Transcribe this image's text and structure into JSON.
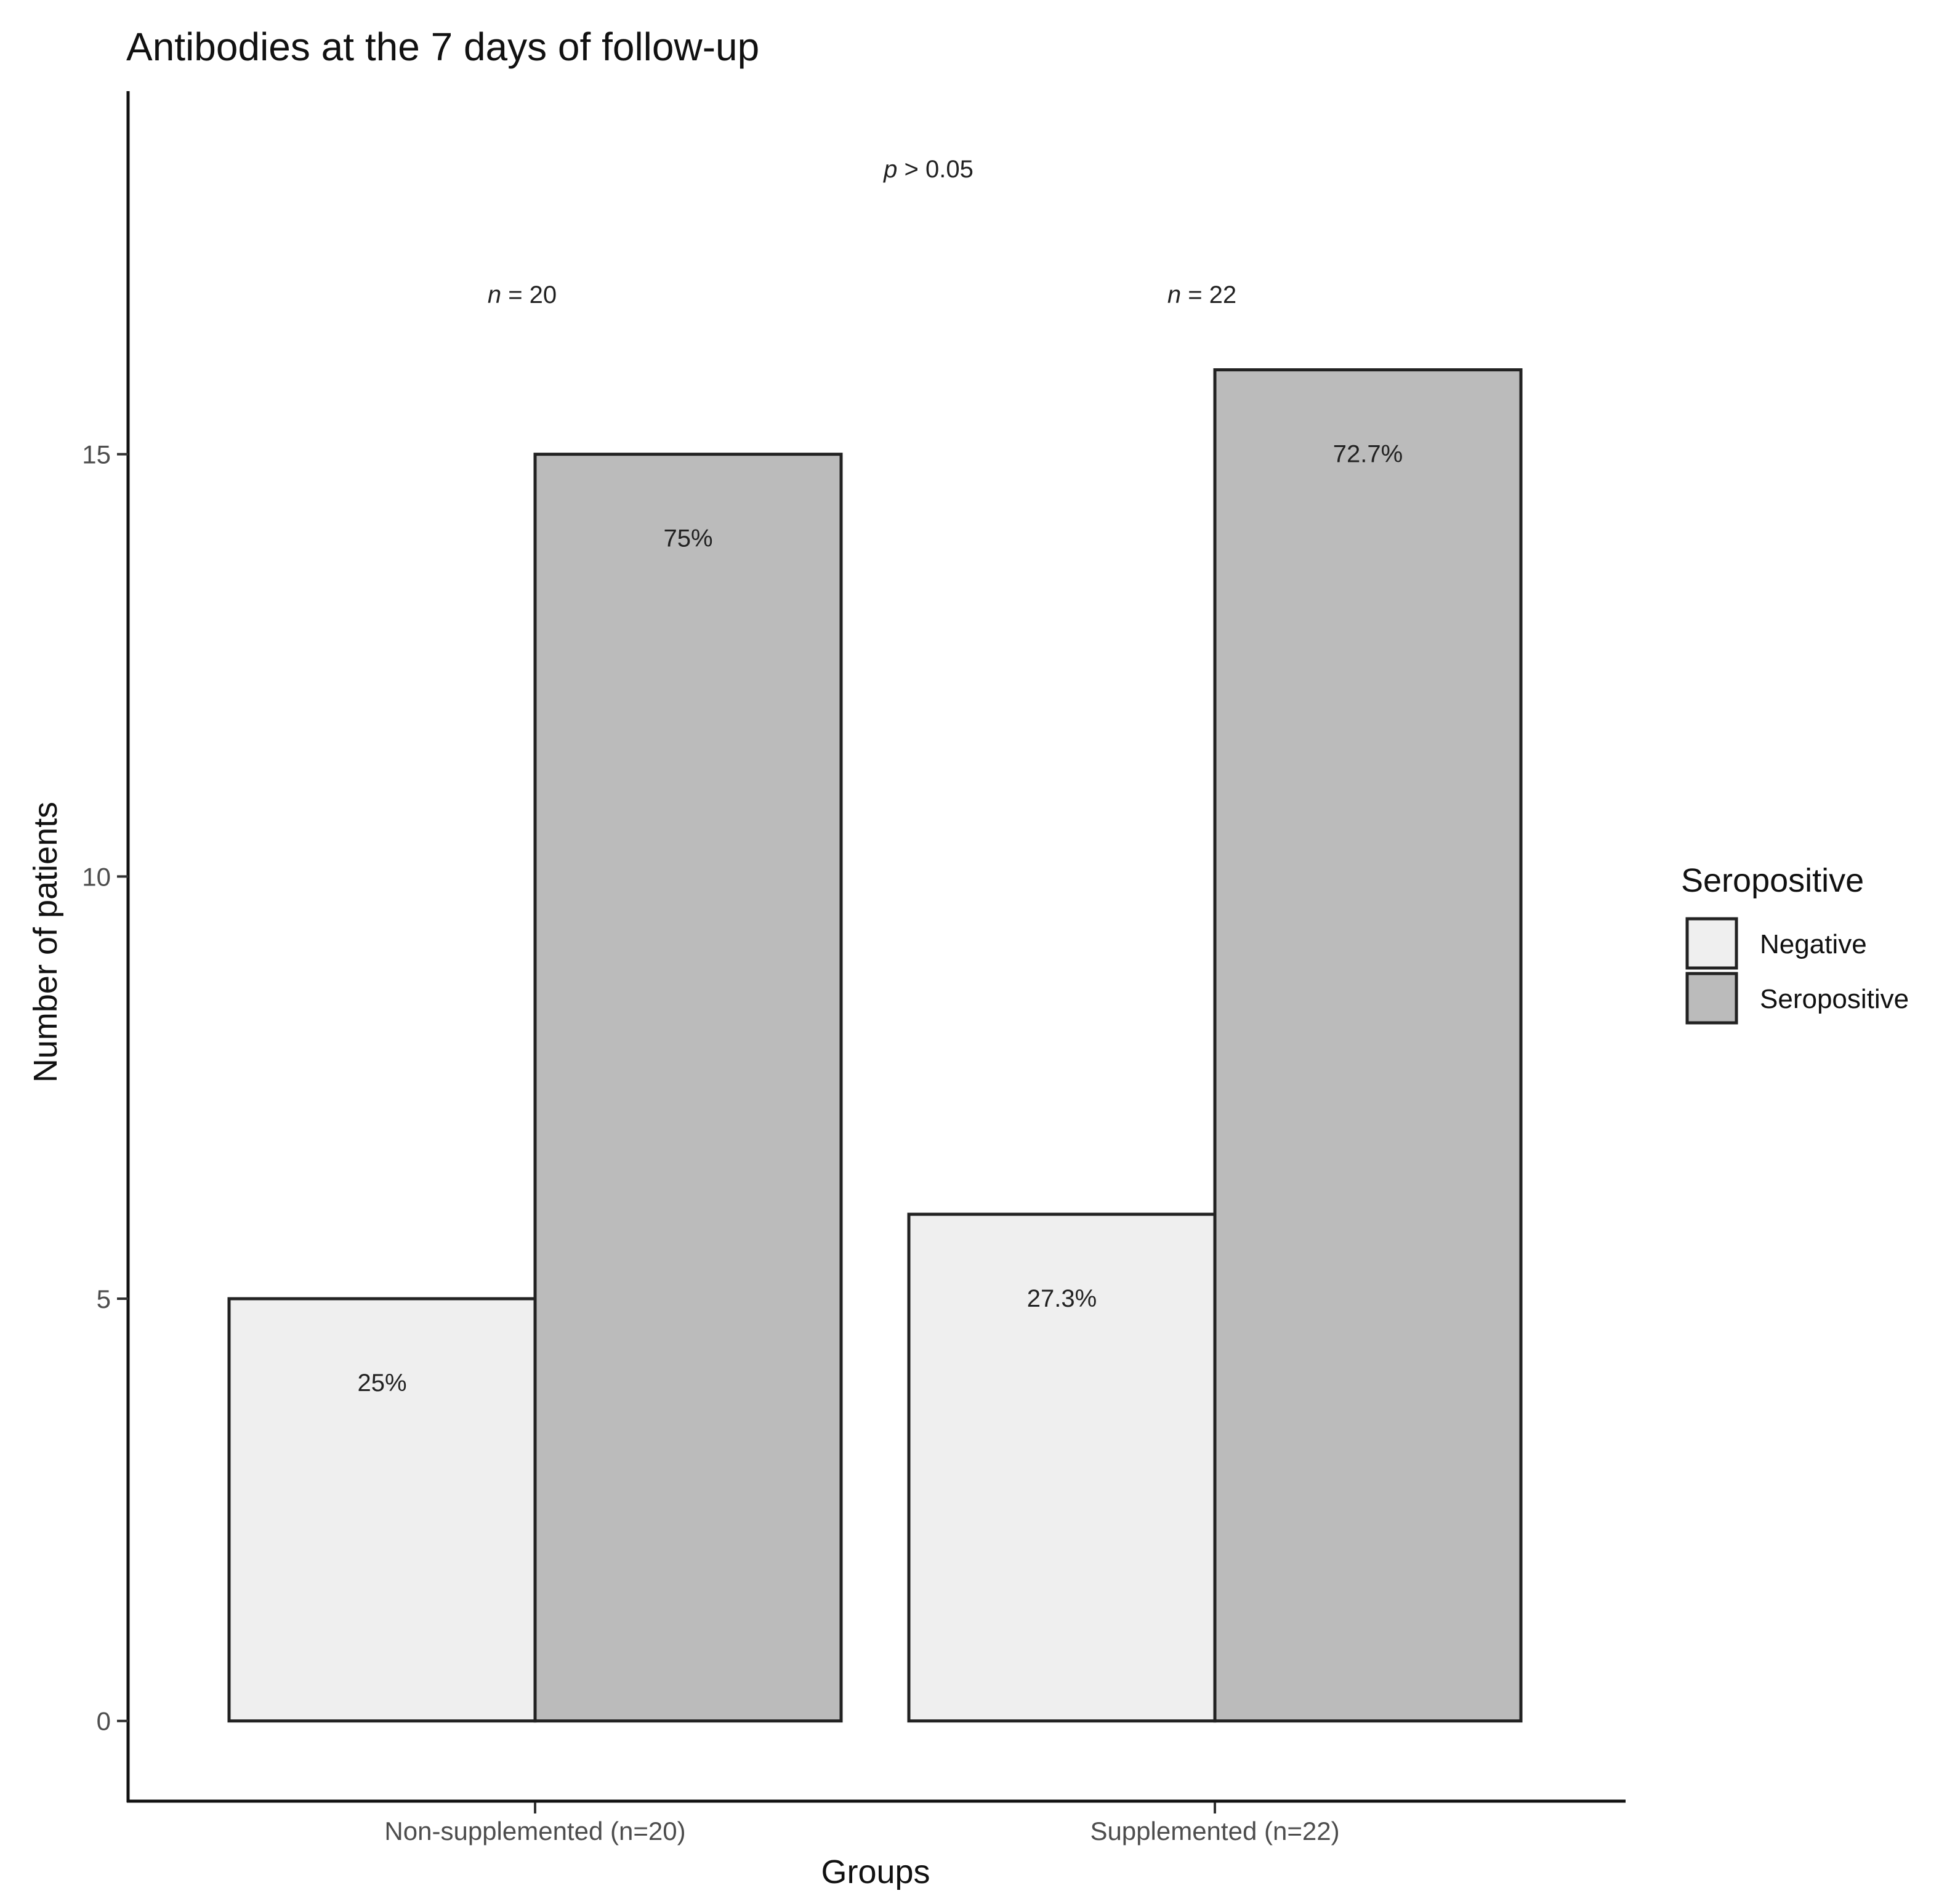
{
  "chart_data": {
    "type": "bar",
    "title": "Antibodies at the 7 days of follow-up",
    "xlabel": "Groups",
    "ylabel": "Number of patients",
    "categories": [
      "Non-supplemented (n=20)",
      "Supplemented (n=22)"
    ],
    "series": [
      {
        "name": "Negative",
        "color": "#efefef",
        "values": [
          5,
          6
        ],
        "labels": [
          "25%",
          "27.3%"
        ]
      },
      {
        "name": "Seropositive",
        "color": "#bbbbbb",
        "values": [
          15,
          16
        ],
        "labels": [
          "75%",
          "72.7%"
        ]
      }
    ],
    "yticks": [
      0,
      5,
      10,
      15
    ],
    "ylim": [
      -0.95,
      19.3
    ],
    "grid": false,
    "legend": {
      "title": "Seropositive",
      "placement": "right"
    },
    "annotations": {
      "p_italic": "p",
      "p_rest": " > 0.05",
      "group_n": [
        {
          "italic": "n",
          "rest": " = 20"
        },
        {
          "italic": "n",
          "rest": " = 22"
        }
      ]
    }
  }
}
